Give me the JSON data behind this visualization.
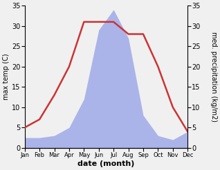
{
  "months": [
    "Jan",
    "Feb",
    "Mar",
    "Apr",
    "May",
    "Jun",
    "Jul",
    "Aug",
    "Sep",
    "Oct",
    "Nov",
    "Dec"
  ],
  "month_positions": [
    1,
    2,
    3,
    4,
    5,
    6,
    7,
    8,
    9,
    10,
    11,
    12
  ],
  "temp_max": [
    5,
    7,
    13,
    20,
    31,
    31,
    31,
    28,
    28,
    20,
    10,
    4
  ],
  "precip": [
    2.5,
    2.5,
    3,
    5,
    12,
    29,
    34,
    27,
    8,
    3,
    2,
    4
  ],
  "temp_color": "#cc3333",
  "precip_color": "#aab4e8",
  "ylim_temp": [
    0,
    35
  ],
  "ylim_precip": [
    0,
    35
  ],
  "xlabel": "date (month)",
  "ylabel_left": "max temp (C)",
  "ylabel_right": "med. precipitation (kg/m2)",
  "bg_color": "#f0f0f0",
  "plot_bg_color": "#f0f0f0",
  "label_fontsize": 8,
  "tick_fontsize": 7,
  "yticks": [
    0,
    5,
    10,
    15,
    20,
    25,
    30,
    35
  ]
}
